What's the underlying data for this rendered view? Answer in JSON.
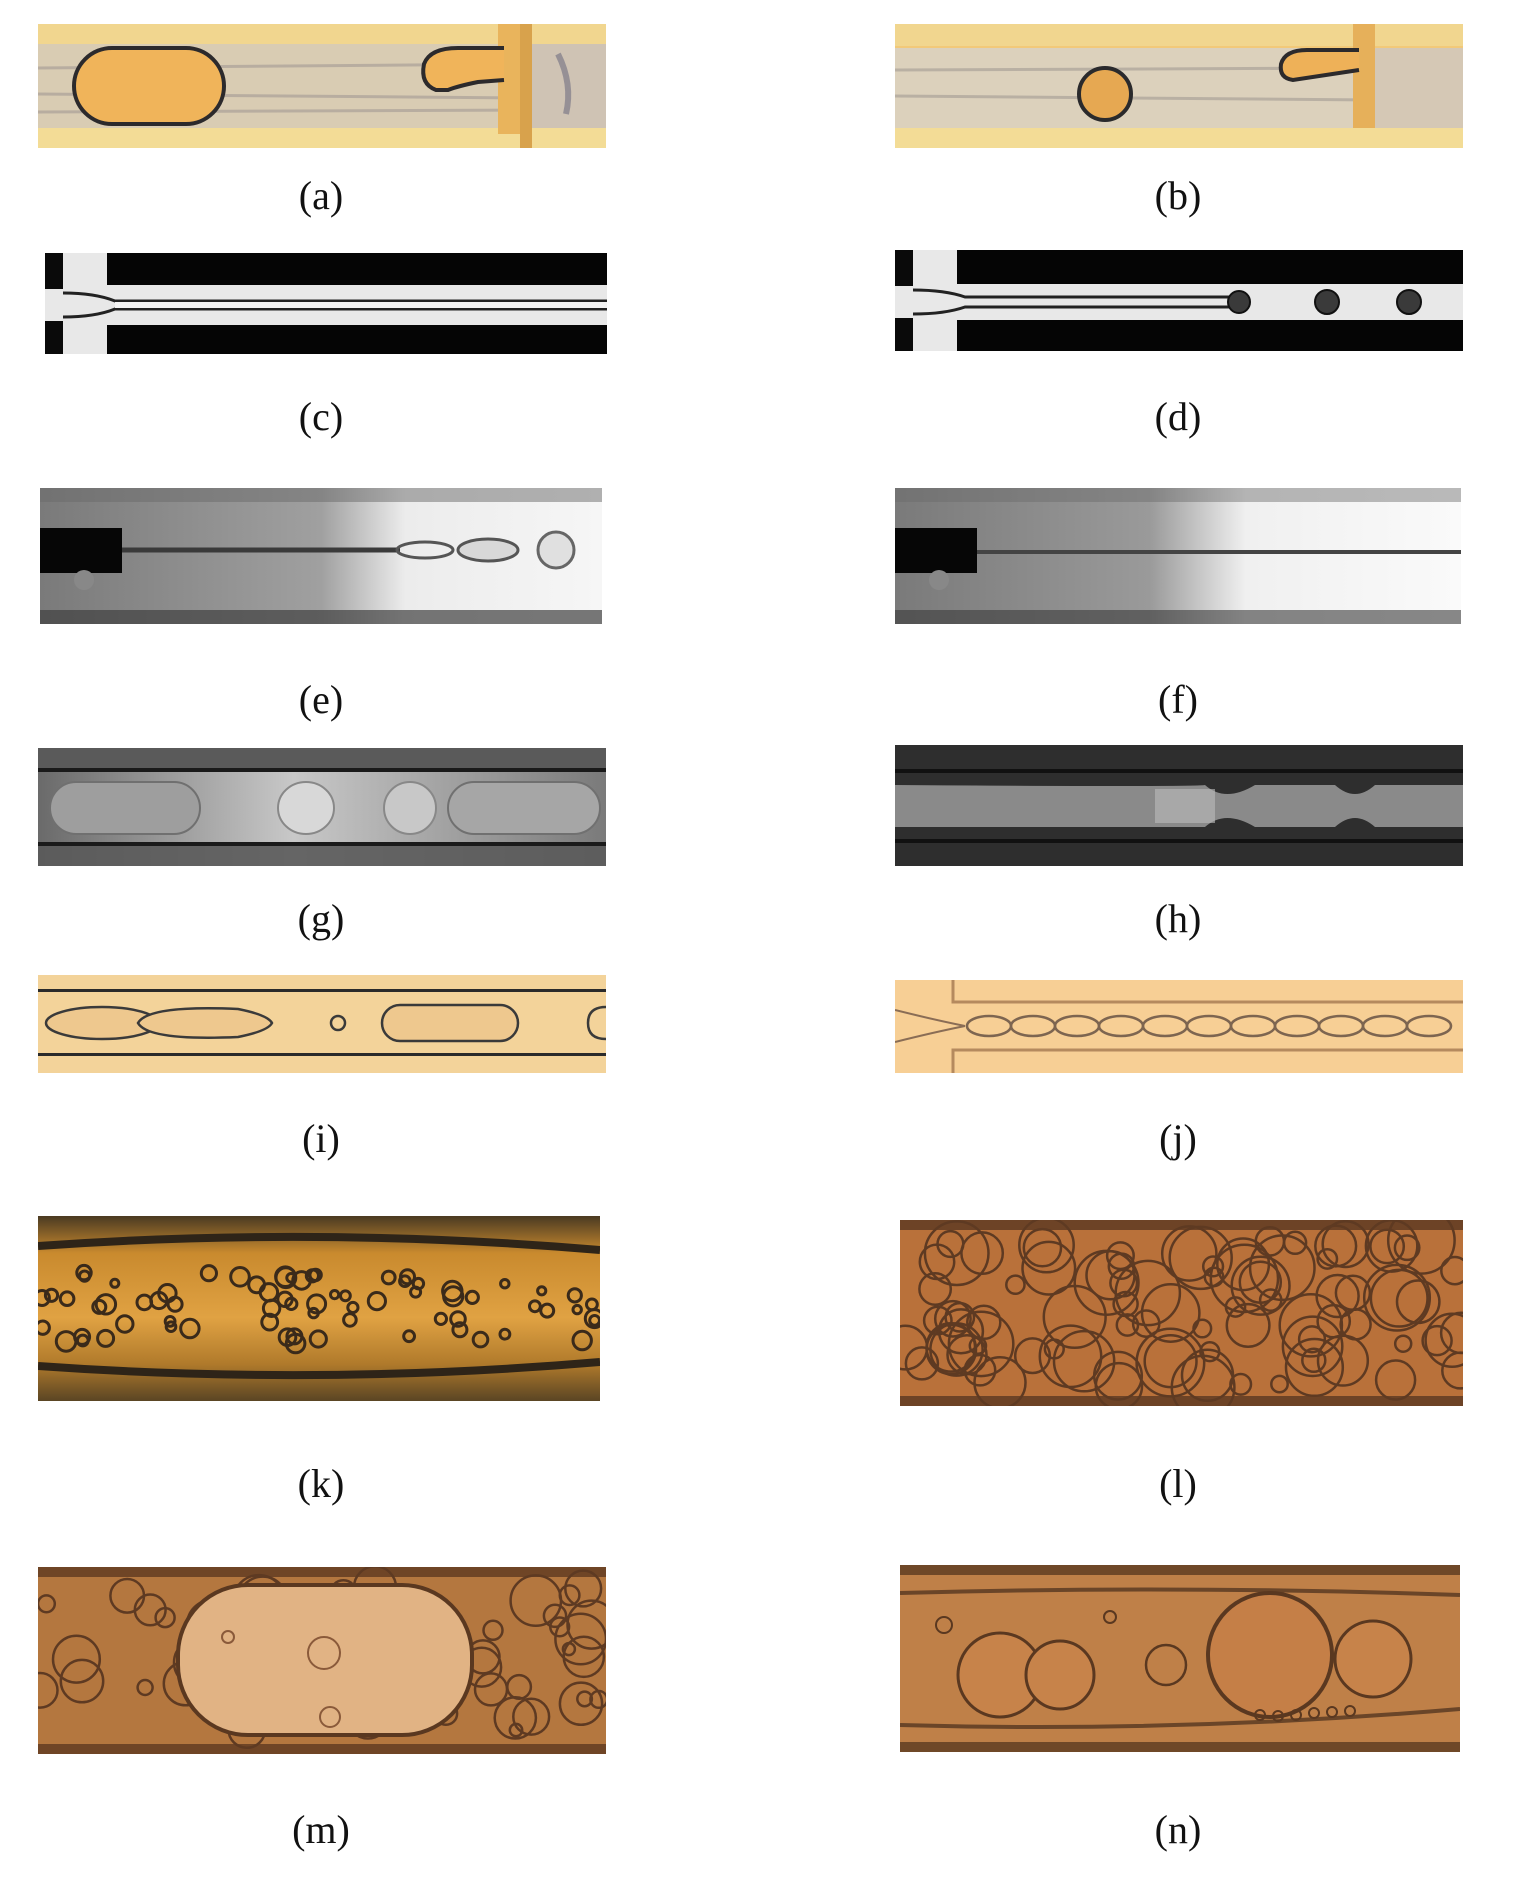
{
  "figure": {
    "panels": [
      {
        "id": "a",
        "label": "(a)",
        "scene": "segmented-flow-slug-bubble",
        "tone": "amber-yellow"
      },
      {
        "id": "b",
        "label": "(b)",
        "scene": "single-round-bubble",
        "tone": "amber-yellow"
      },
      {
        "id": "c",
        "label": "(c)",
        "scene": "flow-focusing-jet",
        "tone": "grayscale"
      },
      {
        "id": "d",
        "label": "(d)",
        "scene": "flow-focusing-droplet-train",
        "tone": "grayscale"
      },
      {
        "id": "e",
        "label": "(e)",
        "scene": "capillary-jet-breakup",
        "tone": "grayscale"
      },
      {
        "id": "f",
        "label": "(f)",
        "scene": "capillary-thin-jet",
        "tone": "grayscale"
      },
      {
        "id": "g",
        "label": "(g)",
        "scene": "slug-flow-channel",
        "tone": "grayscale"
      },
      {
        "id": "h",
        "label": "(h)",
        "scene": "annular-necking-flow",
        "tone": "dark-grayscale"
      },
      {
        "id": "i",
        "label": "(i)",
        "scene": "elongated-droplets",
        "tone": "light-orange"
      },
      {
        "id": "j",
        "label": "(j)",
        "scene": "beaded-thread-chain",
        "tone": "light-orange"
      },
      {
        "id": "k",
        "label": "(k)",
        "scene": "dispersed-microbubbles",
        "tone": "brown-orange"
      },
      {
        "id": "l",
        "label": "(l)",
        "scene": "dense-bubble-foam",
        "tone": "brown"
      },
      {
        "id": "m",
        "label": "(m)",
        "scene": "large-slug-with-foam",
        "tone": "brown"
      },
      {
        "id": "n",
        "label": "(n)",
        "scene": "mixed-bubble-sizes",
        "tone": "brown"
      }
    ]
  }
}
